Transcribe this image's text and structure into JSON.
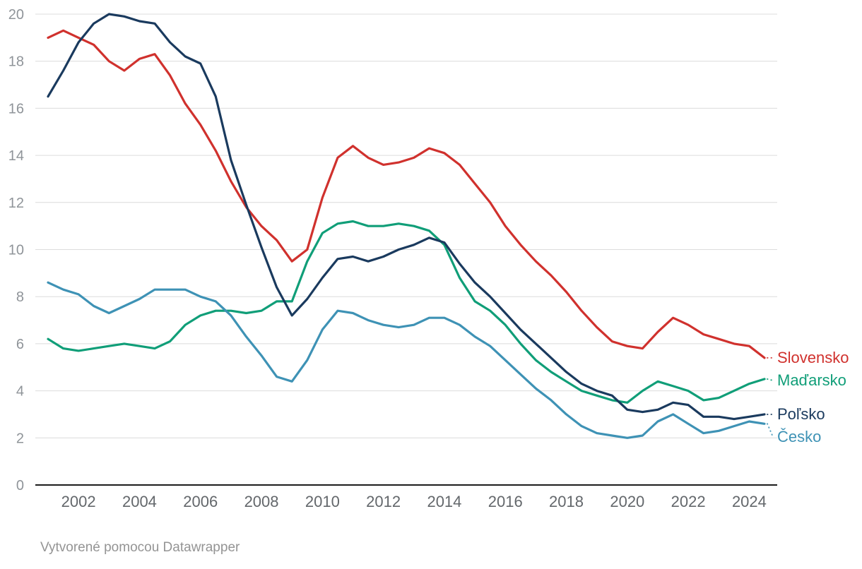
{
  "footer": {
    "credit": "Vytvorené pomocou Datawrapper"
  },
  "chart_data": {
    "type": "line",
    "title": "",
    "xlabel": "",
    "ylabel": "",
    "xlim": [
      2001,
      2024.5
    ],
    "ylim": [
      0,
      20
    ],
    "grid": "horizontal",
    "legend_position": "right-end-labels",
    "yticks": [
      0,
      2,
      4,
      6,
      8,
      10,
      12,
      14,
      16,
      18,
      20
    ],
    "xticks": [
      2002,
      2004,
      2006,
      2008,
      2010,
      2012,
      2014,
      2016,
      2018,
      2020,
      2022,
      2024
    ],
    "x": [
      2001,
      2001.5,
      2002,
      2002.5,
      2003,
      2003.5,
      2004,
      2004.5,
      2005,
      2005.5,
      2006,
      2006.5,
      2007,
      2007.5,
      2008,
      2008.5,
      2009,
      2009.5,
      2010,
      2010.5,
      2011,
      2011.5,
      2012,
      2012.5,
      2013,
      2013.5,
      2014,
      2014.5,
      2015,
      2015.5,
      2016,
      2016.5,
      2017,
      2017.5,
      2018,
      2018.5,
      2019,
      2019.5,
      2020,
      2020.5,
      2021,
      2021.5,
      2022,
      2022.5,
      2023,
      2023.5,
      2024,
      2024.5
    ],
    "series": [
      {
        "name": "Slovensko",
        "color": "#d0312d",
        "values": [
          19.0,
          19.3,
          19.0,
          18.7,
          18.0,
          17.6,
          18.1,
          18.3,
          17.4,
          16.2,
          15.3,
          14.2,
          12.9,
          11.8,
          11.0,
          10.4,
          9.5,
          10.0,
          12.2,
          13.9,
          14.4,
          13.9,
          13.6,
          13.7,
          13.9,
          14.3,
          14.1,
          13.6,
          12.8,
          12.0,
          11.0,
          10.2,
          9.5,
          8.9,
          8.2,
          7.4,
          6.7,
          6.1,
          5.9,
          5.8,
          6.5,
          7.1,
          6.8,
          6.4,
          6.2,
          6.0,
          5.9,
          5.4
        ]
      },
      {
        "name": "Maďarsko",
        "color": "#109e78",
        "values": [
          6.2,
          5.8,
          5.7,
          5.8,
          5.9,
          6.0,
          5.9,
          5.8,
          6.1,
          6.8,
          7.2,
          7.4,
          7.4,
          7.3,
          7.4,
          7.8,
          7.8,
          9.5,
          10.7,
          11.1,
          11.2,
          11.0,
          11.0,
          11.1,
          11.0,
          10.8,
          10.2,
          8.8,
          7.8,
          7.4,
          6.8,
          6.0,
          5.3,
          4.8,
          4.4,
          4.0,
          3.8,
          3.6,
          3.5,
          4.0,
          4.4,
          4.2,
          4.0,
          3.6,
          3.7,
          4.0,
          4.3,
          4.5
        ]
      },
      {
        "name": "Poľsko",
        "color": "#1a3a5e",
        "values": [
          16.5,
          17.6,
          18.8,
          19.6,
          20.0,
          19.9,
          19.7,
          19.6,
          18.8,
          18.2,
          17.9,
          16.5,
          13.8,
          11.9,
          10.1,
          8.4,
          7.2,
          7.9,
          8.8,
          9.6,
          9.7,
          9.5,
          9.7,
          10.0,
          10.2,
          10.5,
          10.3,
          9.4,
          8.6,
          8.0,
          7.3,
          6.6,
          6.0,
          5.4,
          4.8,
          4.3,
          4.0,
          3.8,
          3.2,
          3.1,
          3.2,
          3.5,
          3.4,
          2.9,
          2.9,
          2.8,
          2.9,
          3.0
        ]
      },
      {
        "name": "Česko",
        "color": "#3e92b5",
        "values": [
          8.6,
          8.3,
          8.1,
          7.6,
          7.3,
          7.6,
          7.9,
          8.3,
          8.3,
          8.3,
          8.0,
          7.8,
          7.2,
          6.3,
          5.5,
          4.6,
          4.4,
          5.3,
          6.6,
          7.4,
          7.3,
          7.0,
          6.8,
          6.7,
          6.8,
          7.1,
          7.1,
          6.8,
          6.3,
          5.9,
          5.3,
          4.7,
          4.1,
          3.6,
          3.0,
          2.5,
          2.2,
          2.1,
          2.0,
          2.1,
          2.7,
          3.0,
          2.6,
          2.2,
          2.3,
          2.5,
          2.7,
          2.6
        ]
      }
    ]
  }
}
